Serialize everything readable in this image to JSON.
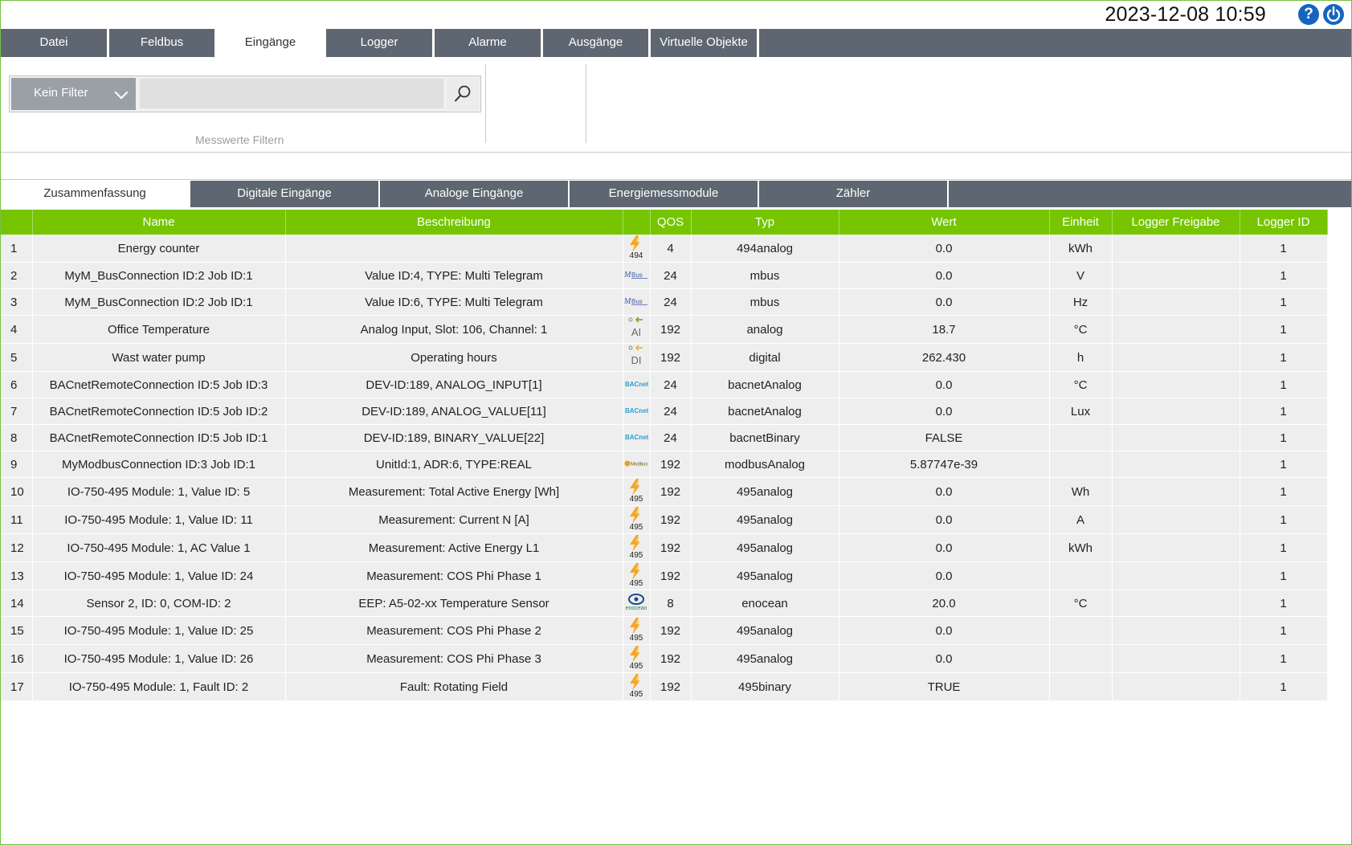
{
  "header": {
    "datetime": "2023-12-08 10:59",
    "help_glyph": "?"
  },
  "menu": {
    "items": [
      "Datei",
      "Feldbus",
      "Eingänge",
      "Logger",
      "Alarme",
      "Ausgänge",
      "Virtuelle Objekte"
    ],
    "active": "Eingänge"
  },
  "filter": {
    "select_value": "Kein Filter",
    "input_value": "",
    "caption": "Messwerte Filtern"
  },
  "subtabs": {
    "items": [
      "Zusammenfassung",
      "Digitale Eingänge",
      "Analoge Eingänge",
      "Energiemessmodule",
      "Zähler"
    ],
    "active": "Zusammenfassung"
  },
  "table": {
    "headers": [
      "",
      "Name",
      "Beschreibung",
      "",
      "QOS",
      "Typ",
      "Wert",
      "Einheit",
      "Logger Freigabe",
      "Logger ID"
    ],
    "rows": [
      {
        "n": "1",
        "name": "Energy counter",
        "desc": "",
        "icon": "494",
        "qos": "4",
        "typ": "494analog",
        "wert": "0.0",
        "einheit": "kWh",
        "freigabe": "",
        "lid": "1"
      },
      {
        "n": "2",
        "name": "MyM_BusConnection ID:2 Job ID:1",
        "desc": "Value ID:4, TYPE: Multi Telegram",
        "icon": "mbus",
        "qos": "24",
        "typ": "mbus",
        "wert": "0.0",
        "einheit": "V",
        "freigabe": "",
        "lid": "1"
      },
      {
        "n": "3",
        "name": "MyM_BusConnection ID:2 Job ID:1",
        "desc": "Value ID:6, TYPE: Multi Telegram",
        "icon": "mbus",
        "qos": "24",
        "typ": "mbus",
        "wert": "0.0",
        "einheit": "Hz",
        "freigabe": "",
        "lid": "1"
      },
      {
        "n": "4",
        "name": "Office Temperature",
        "desc": "Analog Input, Slot: 106, Channel: 1",
        "icon": "AI",
        "qos": "192",
        "typ": "analog",
        "wert": "18.7",
        "einheit": "°C",
        "freigabe": "",
        "lid": "1"
      },
      {
        "n": "5",
        "name": "Wast water pump",
        "desc": "Operating hours",
        "icon": "DI",
        "qos": "192",
        "typ": "digital",
        "wert": "262.430",
        "einheit": "h",
        "freigabe": "",
        "lid": "1"
      },
      {
        "n": "6",
        "name": "BACnetRemoteConnection ID:5 Job ID:3",
        "desc": "DEV-ID:189, ANALOG_INPUT[1]",
        "icon": "bacnet",
        "qos": "24",
        "typ": "bacnetAnalog",
        "wert": "0.0",
        "einheit": "°C",
        "freigabe": "",
        "lid": "1"
      },
      {
        "n": "7",
        "name": "BACnetRemoteConnection ID:5 Job ID:2",
        "desc": "DEV-ID:189, ANALOG_VALUE[11]",
        "icon": "bacnet",
        "qos": "24",
        "typ": "bacnetAnalog",
        "wert": "0.0",
        "einheit": "Lux",
        "freigabe": "",
        "lid": "1"
      },
      {
        "n": "8",
        "name": "BACnetRemoteConnection ID:5 Job ID:1",
        "desc": "DEV-ID:189, BINARY_VALUE[22]",
        "icon": "bacnet",
        "qos": "24",
        "typ": "bacnetBinary",
        "wert": "FALSE",
        "einheit": "",
        "freigabe": "",
        "lid": "1"
      },
      {
        "n": "9",
        "name": "MyModbusConnection ID:3 Job ID:1",
        "desc": "UnitId:1, ADR:6, TYPE:REAL",
        "icon": "modbus",
        "qos": "192",
        "typ": "modbusAnalog",
        "wert": "5.87747e-39",
        "einheit": "",
        "freigabe": "",
        "lid": "1"
      },
      {
        "n": "10",
        "name": "IO-750-495 Module: 1, Value ID: 5",
        "desc": "Measurement: Total Active Energy [Wh]",
        "icon": "495",
        "qos": "192",
        "typ": "495analog",
        "wert": "0.0",
        "einheit": "Wh",
        "freigabe": "",
        "lid": "1"
      },
      {
        "n": "11",
        "name": "IO-750-495 Module: 1, Value ID: 11",
        "desc": "Measurement: Current N [A]",
        "icon": "495",
        "qos": "192",
        "typ": "495analog",
        "wert": "0.0",
        "einheit": "A",
        "freigabe": "",
        "lid": "1"
      },
      {
        "n": "12",
        "name": "IO-750-495 Module: 1, AC Value 1",
        "desc": "Measurement: Active Energy L1",
        "icon": "495",
        "qos": "192",
        "typ": "495analog",
        "wert": "0.0",
        "einheit": "kWh",
        "freigabe": "",
        "lid": "1"
      },
      {
        "n": "13",
        "name": "IO-750-495 Module: 1, Value ID: 24",
        "desc": "Measurement: COS Phi Phase 1",
        "icon": "495",
        "qos": "192",
        "typ": "495analog",
        "wert": "0.0",
        "einheit": "",
        "freigabe": "",
        "lid": "1"
      },
      {
        "n": "14",
        "name": "Sensor 2, ID: 0, COM-ID: 2",
        "desc": "EEP: A5-02-xx Temperature Sensor",
        "icon": "enocean",
        "qos": "8",
        "typ": "enocean",
        "wert": "20.0",
        "einheit": "°C",
        "freigabe": "",
        "lid": "1"
      },
      {
        "n": "15",
        "name": "IO-750-495 Module: 1, Value ID: 25",
        "desc": "Measurement: COS Phi Phase 2",
        "icon": "495",
        "qos": "192",
        "typ": "495analog",
        "wert": "0.0",
        "einheit": "",
        "freigabe": "",
        "lid": "1"
      },
      {
        "n": "16",
        "name": "IO-750-495 Module: 1, Value ID: 26",
        "desc": "Measurement: COS Phi Phase 3",
        "icon": "495",
        "qos": "192",
        "typ": "495analog",
        "wert": "0.0",
        "einheit": "",
        "freigabe": "",
        "lid": "1"
      },
      {
        "n": "17",
        "name": "IO-750-495 Module: 1, Fault ID: 2",
        "desc": "Fault: Rotating Field",
        "icon": "495",
        "qos": "192",
        "typ": "495binary",
        "wert": "TRUE",
        "einheit": "",
        "freigabe": "",
        "lid": "1"
      }
    ]
  },
  "icons": {
    "494": {
      "name": "energy-494-icon",
      "label": "494"
    },
    "495": {
      "name": "energy-495-icon",
      "label": "495"
    },
    "mbus": {
      "name": "mbus-icon",
      "label": "M-Bus"
    },
    "AI": {
      "name": "analog-input-icon",
      "label": "AI"
    },
    "DI": {
      "name": "digital-input-icon",
      "label": "DI"
    },
    "bacnet": {
      "name": "bacnet-icon",
      "label": "BACnet"
    },
    "modbus": {
      "name": "modbus-icon",
      "label": "Modbus"
    },
    "enocean": {
      "name": "enocean-icon",
      "label": "enocean"
    }
  },
  "colors": {
    "accent_green": "#76c500",
    "menu_grey": "#5e6671",
    "help_blue": "#1565c0",
    "bolt_orange": "#f5a623"
  }
}
